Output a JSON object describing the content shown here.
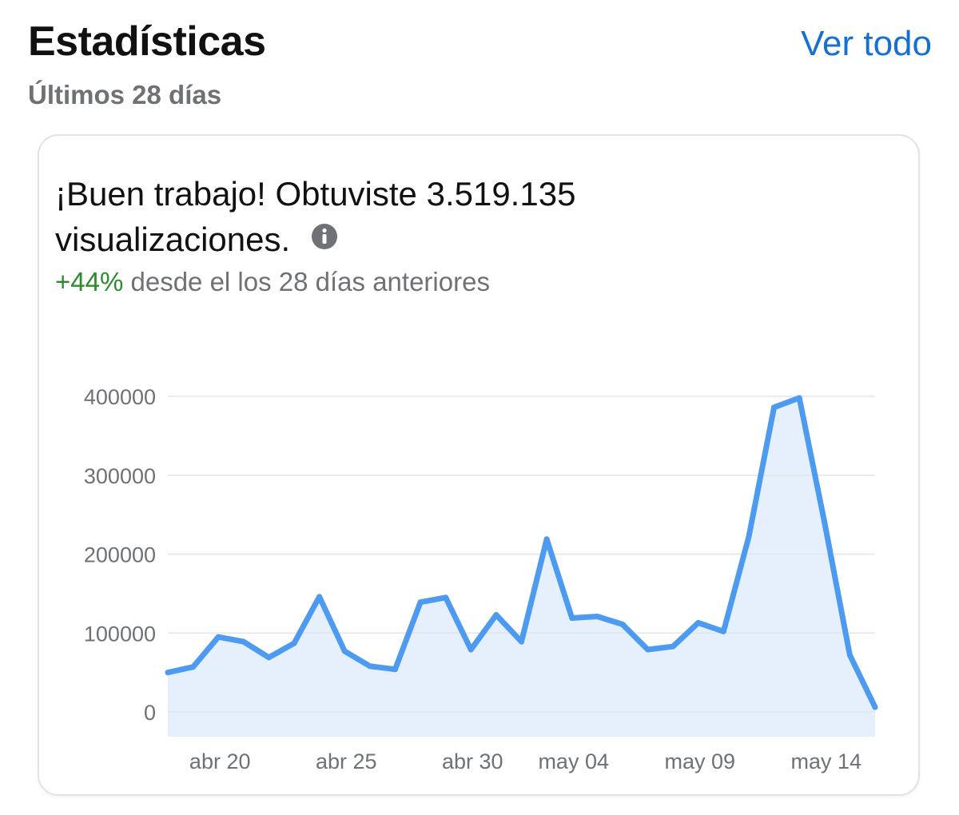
{
  "header": {
    "title": "Estadísticas",
    "subtitle": "Últimos 28 días",
    "see_all_label": "Ver todo"
  },
  "card": {
    "headline": "¡Buen trabajo! Obtuviste 3.519.135 visualizaciones.",
    "change_pct": "+44%",
    "change_text": " desde el los 28 días anteriores",
    "info_icon": "info-icon"
  },
  "colors": {
    "accent": "#1570d1",
    "line": "#4c9bf0",
    "fill": "#e6f0fc",
    "positive": "#2e8b2e"
  },
  "chart_data": {
    "type": "area",
    "x": [
      "abr 18",
      "abr 19",
      "abr 20",
      "abr 21",
      "abr 22",
      "abr 23",
      "abr 24",
      "abr 25",
      "abr 26",
      "abr 27",
      "abr 28",
      "abr 29",
      "abr 30",
      "may 01",
      "may 02",
      "may 03",
      "may 04",
      "may 05",
      "may 06",
      "may 07",
      "may 08",
      "may 09",
      "may 10",
      "may 11",
      "may 12",
      "may 13",
      "may 14",
      "may 15",
      "may 16"
    ],
    "values": [
      50000,
      57000,
      95000,
      89000,
      69000,
      87000,
      146000,
      77000,
      58000,
      54000,
      139000,
      145000,
      79000,
      123000,
      89000,
      219000,
      119000,
      121000,
      111000,
      79000,
      83000,
      113000,
      102000,
      222000,
      386000,
      398000,
      240000,
      72000,
      6000
    ],
    "x_tick_labels": [
      "abr 20",
      "abr 25",
      "abr 30",
      "may 04",
      "may 09",
      "may 14"
    ],
    "x_tick_indices": [
      2,
      7,
      12,
      16,
      21,
      26
    ],
    "y_ticks": [
      0,
      100000,
      200000,
      300000,
      400000
    ],
    "ylim": [
      0,
      400000
    ],
    "grid": true
  }
}
